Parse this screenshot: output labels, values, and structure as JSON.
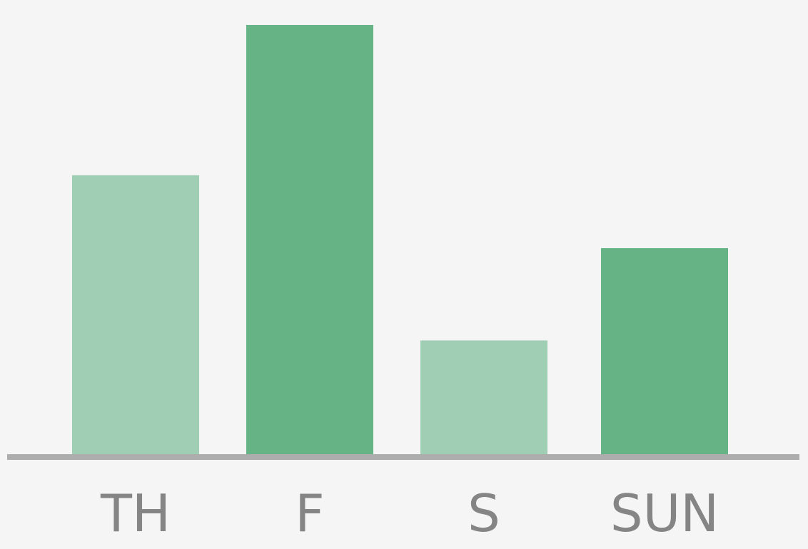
{
  "chart_data": {
    "type": "bar",
    "categories": [
      "TH",
      "F",
      "S",
      "SUN"
    ],
    "values": [
      65,
      100,
      26.5,
      48
    ],
    "bar_colors": [
      "#9fceb5",
      "#66b386",
      "#9fceb5",
      "#66b386"
    ],
    "ylim": [
      0,
      100
    ],
    "title": "",
    "xlabel": "",
    "ylabel": "",
    "grid": false,
    "legend": "none",
    "axis_color": "#adadad",
    "label_color": "#858585",
    "background": "#f5f5f5"
  }
}
